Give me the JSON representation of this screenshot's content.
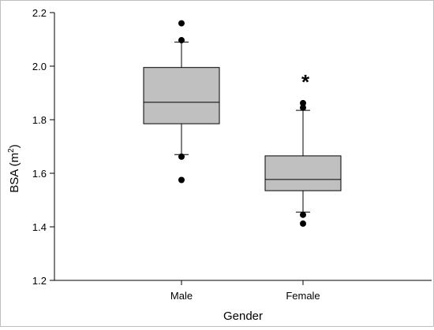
{
  "chart_data": {
    "type": "box",
    "xlabel": "Gender",
    "ylabel": {
      "base": "BSA (m",
      "sup": "2",
      "close": ")"
    },
    "ylim": [
      1.2,
      2.2
    ],
    "yticks": [
      "1.2",
      "1.4",
      "1.6",
      "1.8",
      "2.0",
      "2.2"
    ],
    "grid": false,
    "categories": [
      "Male",
      "Female"
    ],
    "boxes": [
      {
        "category": "Male",
        "lower_whisker": 1.67,
        "q1": 1.785,
        "median": 1.865,
        "q3": 1.995,
        "upper_whisker": 2.09,
        "outliers": [
          2.16,
          2.097,
          1.662,
          1.575
        ],
        "annotation": ""
      },
      {
        "category": "Female",
        "lower_whisker": 1.455,
        "q1": 1.535,
        "median": 1.577,
        "q3": 1.665,
        "upper_whisker": 1.835,
        "outliers": [
          1.862,
          1.845,
          1.445,
          1.412
        ],
        "annotation": "*"
      }
    ],
    "colors": {
      "box_fill": "#c0c0c0",
      "line": "#000000",
      "point": "#000000"
    }
  }
}
